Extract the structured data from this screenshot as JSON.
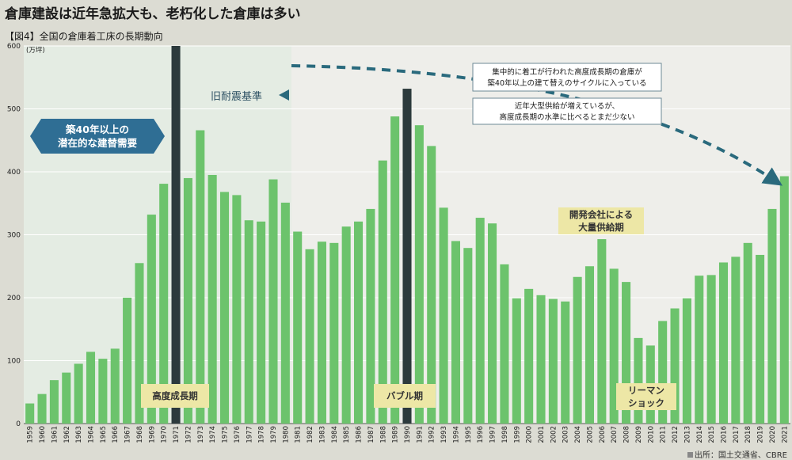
{
  "title": "倉庫建設は近年急拡大も、老朽化した倉庫は多い",
  "subtitle": "【図4】全国の倉庫着工床の長期動向",
  "source": "出所：国土交通省、CBRE",
  "colors": {
    "bar": "#6cc36c",
    "highlight_bar": "#2c3a3c",
    "shade": "#e4ece3",
    "plot_bg": "#eeeeea",
    "arrow": "#2a6a7d",
    "label_box": "#ede7a6",
    "blue_box": "#2f6e94"
  },
  "chart_data": {
    "type": "bar",
    "unit_label": "(万坪)",
    "ylim": [
      0,
      600
    ],
    "yticks": [
      0,
      100,
      200,
      300,
      400,
      500,
      600
    ],
    "grid": true,
    "categories": [
      "1959",
      "1960",
      "1961",
      "1962",
      "1963",
      "1964",
      "1965",
      "1966",
      "1967",
      "1968",
      "1969",
      "1970",
      "1971",
      "1972",
      "1973",
      "1974",
      "1975",
      "1976",
      "1977",
      "1978",
      "1979",
      "1980",
      "1981",
      "1982",
      "1983",
      "1984",
      "1985",
      "1986",
      "1987",
      "1988",
      "1989",
      "1990",
      "1991",
      "1992",
      "1993",
      "1994",
      "1995",
      "1996",
      "1997",
      "1998",
      "1999",
      "2000",
      "2001",
      "2002",
      "2003",
      "2004",
      "2005",
      "2006",
      "2007",
      "2008",
      "2009",
      "2010",
      "2011",
      "2012",
      "2013",
      "2014",
      "2015",
      "2016",
      "2017",
      "2018",
      "2019",
      "2020",
      "2021"
    ],
    "values": [
      32,
      47,
      69,
      81,
      95,
      114,
      103,
      119,
      200,
      255,
      332,
      381,
      600,
      390,
      466,
      395,
      368,
      363,
      323,
      321,
      388,
      351,
      305,
      277,
      289,
      287,
      313,
      321,
      341,
      418,
      488,
      532,
      474,
      441,
      343,
      290,
      279,
      327,
      318,
      253,
      199,
      214,
      204,
      198,
      194,
      233,
      250,
      293,
      246,
      225,
      136,
      124,
      163,
      183,
      199,
      235,
      236,
      256,
      265,
      287,
      268,
      341,
      393
    ],
    "highlight_categories": [
      "1971",
      "1990"
    ],
    "shaded_range": [
      "1959",
      "1980"
    ],
    "annotations": {
      "old_standard": "旧耐震基準",
      "replacement_demand": [
        "築40年以上の",
        "潜在的な建替需要"
      ],
      "box1": [
        "集中的に着工が行われた高度成長期の倉庫が",
        "築40年以上の建て替えのサイクルに入っている"
      ],
      "box2": [
        "近年大型供給が増えているが、",
        "高度成長期の水準に比べるとまだ少ない"
      ],
      "developers": [
        "開発会社による",
        "大量供給期"
      ],
      "high_growth": "高度成長期",
      "bubble": "バブル期",
      "lehman": [
        "リーマン",
        "ショック"
      ]
    }
  }
}
